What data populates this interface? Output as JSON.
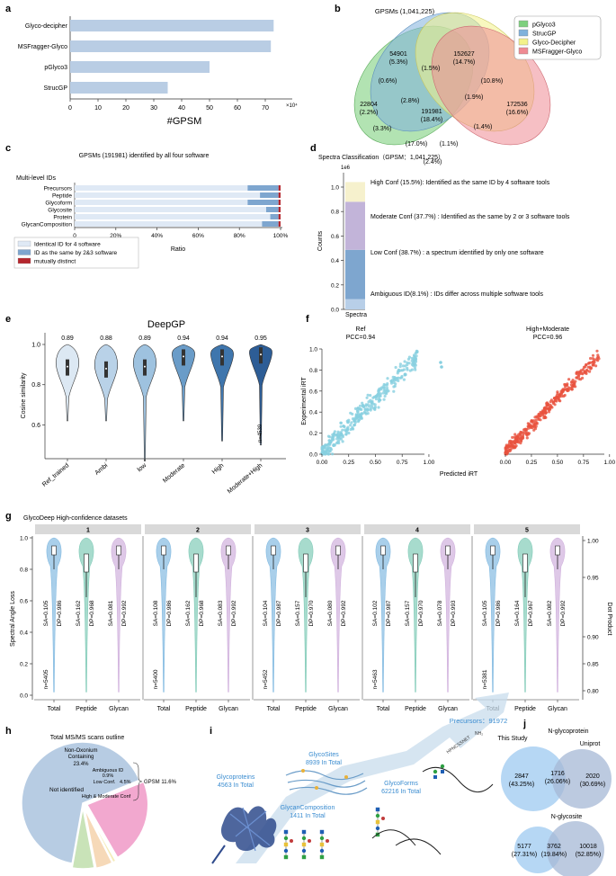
{
  "panels": {
    "a": "a",
    "b": "b",
    "c": "c",
    "d": "d",
    "e": "e",
    "f": "f",
    "g": "g",
    "h": "h",
    "i": "i",
    "j": "j"
  },
  "panel_a": {
    "chart_data": {
      "type": "bar",
      "orientation": "horizontal",
      "categories": [
        "Glyco-decipher",
        "MSFragger-Glyco",
        "pGlyco3",
        "StrucGP"
      ],
      "values": [
        73,
        72,
        50,
        35
      ],
      "scale_label": "×10⁴",
      "xlabel": "#GPSM",
      "xticks": [
        "0",
        "10",
        "20",
        "30",
        "40",
        "50",
        "60",
        "70"
      ],
      "xlim": [
        0,
        80
      ]
    }
  },
  "panel_b": {
    "title": "GPSMs (1,041,225)",
    "legend": [
      "pGlyco3",
      "StrucGP",
      "Glyco-Decipher",
      "MSFragger-Glyco"
    ],
    "colors": [
      "#7ed07e",
      "#7fb1dc",
      "#f3f28a",
      "#ef8a93"
    ],
    "regions": [
      {
        "l1": "54901",
        "l2": "(5.3%)"
      },
      {
        "l1": "152627",
        "l2": "(14.7%)"
      },
      {
        "l1": "(1.5%)",
        "l2": ""
      },
      {
        "l1": "(0.6%)",
        "l2": ""
      },
      {
        "l1": "(10.8%)",
        "l2": ""
      },
      {
        "l1": "22804",
        "l2": "(2.2%)"
      },
      {
        "l1": "(2.8%)",
        "l2": ""
      },
      {
        "l1": "(1.9%)",
        "l2": ""
      },
      {
        "l1": "172536",
        "l2": "(16.6%)"
      },
      {
        "l1": "191981",
        "l2": "(18.4%)"
      },
      {
        "l1": "(3.3%)",
        "l2": ""
      },
      {
        "l1": "(1.4%)",
        "l2": ""
      },
      {
        "l1": "(17.0%)",
        "l2": ""
      },
      {
        "l1": "(1.1%)",
        "l2": ""
      },
      {
        "l1": "(2.4%)",
        "l2": ""
      }
    ]
  },
  "panel_c": {
    "chart_data": {
      "type": "bar",
      "stacked": true,
      "title": "GPSMs (191981) identified by all four software",
      "subtitle": "Multi-level IDs",
      "categories": [
        "Precursors",
        "Peptide",
        "Glycoform",
        "Glycosite",
        "Protein",
        "GlycanComposition"
      ],
      "series": [
        {
          "name": "Identical ID for 4 software",
          "values": [
            84,
            90,
            84,
            93,
            95,
            91
          ]
        },
        {
          "name": "ID as the same by 2&3 software",
          "values": [
            15,
            9,
            15,
            6,
            4,
            8
          ]
        },
        {
          "name": "mutually distinct",
          "values": [
            1,
            1,
            1,
            1,
            1,
            1
          ]
        }
      ],
      "xticks": [
        "0",
        "20%",
        "40%",
        "60%",
        "80%",
        "100%"
      ],
      "xlabel": "Ratio",
      "colors": [
        "#dfe9f5",
        "#7ea6cf",
        "#b5272e"
      ]
    }
  },
  "panel_d": {
    "chart_data": {
      "type": "bar",
      "stacked": true,
      "title": "Spectra Classification（GPSM：1,041,225）",
      "ylabel": "Counts",
      "scale": "1e6",
      "xlabel": "Spectra",
      "yticks": [
        "0.0",
        "0.2",
        "0.4",
        "0.6",
        "0.8",
        "1.0"
      ],
      "series": [
        {
          "name": "Ambiguous ID",
          "value": 0.084
        },
        {
          "name": "Low Conf",
          "value": 0.403
        },
        {
          "name": "Moderate Conf",
          "value": 0.393
        },
        {
          "name": "High Conf",
          "value": 0.161
        }
      ],
      "colors": [
        "#b8cfe8",
        "#7ea6cf",
        "#c2b4d9",
        "#f6f1cd"
      ],
      "annotations": [
        "High Conf (15.5%): Identified as the same ID by 4 software tools",
        "Moderate Conf (37.7%) : Identified as the same by 2 or 3 software tools",
        "Low Conf (38.7%) : a spectrum identified by  only one software",
        "Ambiguous ID(8.1%) : IDs differ across multiple software tools"
      ]
    }
  },
  "panel_e": {
    "chart_data": {
      "type": "violin",
      "title": "DeepGP",
      "ylabel": "Cosine similarity",
      "categories": [
        "Ref_trained",
        "Ambi",
        "low",
        "Moderate",
        "High",
        "Moderate+High"
      ],
      "medians": [
        0.89,
        0.88,
        0.89,
        0.94,
        0.94,
        0.95
      ],
      "median_labels": [
        "0.89",
        "0.88",
        "0.89",
        "0.94",
        "0.94",
        "0.95"
      ],
      "yticks": [
        "0.6",
        "0.8",
        "1.0"
      ],
      "n_label": "n=4539",
      "colors": [
        "#dce8f3",
        "#b9d2e8",
        "#9ec2df",
        "#6a9cc8",
        "#3f76ad",
        "#2d5d96"
      ]
    }
  },
  "panel_f": {
    "chart_data": {
      "type": "scatter",
      "ylabel": "Experimental iRT",
      "xlabel": "Predicted iRT",
      "series": [
        {
          "name": "Ref",
          "pcc": "PCC=0.94",
          "color": "#87cfe0"
        },
        {
          "name": "High+Moderate",
          "pcc": "PCC=0.96",
          "color": "#e8533e"
        }
      ],
      "xticks": [
        "0.00",
        "0.25",
        "0.50",
        "0.75",
        "1.00"
      ],
      "yticks": [
        "0.0",
        "0.2",
        "0.4",
        "0.6",
        "0.8",
        "1.0"
      ],
      "left_title": "Ref",
      "right_title": "High+Moderate"
    }
  },
  "panel_g": {
    "chart_data": {
      "type": "violin",
      "title": "GlycoDeep High-confidence datasets",
      "ylabel": "Spectral Angle Loss",
      "ylabel2": "Dot Product",
      "facets": [
        "1",
        "2",
        "3",
        "4",
        "5"
      ],
      "categories": [
        "Total",
        "Peptide",
        "Glycan"
      ],
      "sa": [
        [
          "SA=0.105",
          "SA=0.162",
          "SA=0.081"
        ],
        [
          "SA=0.108",
          "SA=0.162",
          "SA=0.083"
        ],
        [
          "SA=0.104",
          "SA=0.157",
          "SA=0.080"
        ],
        [
          "SA=0.102",
          "SA=0.157",
          "SA=0.078"
        ],
        [
          "SA=0.105",
          "SA=0.164",
          "SA=0.082"
        ]
      ],
      "dp": [
        [
          "DP=0.986",
          "DP=0.968",
          "DP=0.992"
        ],
        [
          "DP=0.986",
          "DP=0.968",
          "DP=0.992"
        ],
        [
          "DP=0.987",
          "DP=0.970",
          "DP=0.992"
        ],
        [
          "DP=0.987",
          "DP=0.970",
          "DP=0.993"
        ],
        [
          "DP=0.986",
          "DP=0.967",
          "DP=0.992"
        ]
      ],
      "n": [
        "n=5405",
        "n=5400",
        "n=5452",
        "n=5463",
        "n=5381"
      ],
      "yticks": [
        "0.0",
        "0.2",
        "0.4",
        "0.6",
        "0.8",
        "1.0"
      ],
      "yticks2": [
        "0.80",
        "0.85",
        "0.90",
        "0.95",
        "1.00"
      ],
      "colors": [
        "#62a8d9",
        "#5fbda4",
        "#c39ad3"
      ]
    }
  },
  "panel_h": {
    "chart_data": {
      "type": "pie",
      "title": "Total MS/MS scans outline",
      "slices": [
        {
          "label": "Not identified",
          "value": 65.0,
          "color": "#b7cce3"
        },
        {
          "label": "Non-Oxonium Containing",
          "pct": "23.4%",
          "value": 23.4,
          "color": "#f2a8cf"
        },
        {
          "label": "Ambiguous ID",
          "pct": "0.9%",
          "value": 0.9,
          "color": "#f4ecb8"
        },
        {
          "label": "Low Conf.",
          "pct": "4.5%",
          "value": 4.5,
          "color": "#f6d9b8"
        },
        {
          "label": "High & Moderate Conf",
          "value": 6.2,
          "color": "#c9e3b8"
        }
      ],
      "gpsm_label": "GPSM 11.6%"
    }
  },
  "panel_i": {
    "precursors": "Precursors：91972",
    "glycosites": [
      "GlycoSites",
      "8939 In Total"
    ],
    "glycoproteins": [
      "Glycoproteins",
      "4563 In Total"
    ],
    "glycoforms": [
      "GlycoForms",
      "62216 In Total"
    ],
    "composition": [
      "GlycanComposition",
      "1411 In Total"
    ],
    "peptide_seq": "HPNCSSNET",
    "nh2": "NH₂"
  },
  "panel_j": {
    "title1": "N-glycoprotein",
    "left1": "This Study",
    "right1": "Uniprot",
    "v1": [
      [
        "2847",
        "(43.25%)"
      ],
      [
        "1716",
        "(26.06%)"
      ],
      [
        "2020",
        "(30.69%)"
      ]
    ],
    "title2": "N-glycosite",
    "v2": [
      [
        "5177",
        "(27.31%)"
      ],
      [
        "3762",
        "(19.84%)"
      ],
      [
        "10018",
        "(52.85%)"
      ]
    ],
    "colors": [
      "#a9d0f2",
      "#a6b8d6"
    ]
  }
}
